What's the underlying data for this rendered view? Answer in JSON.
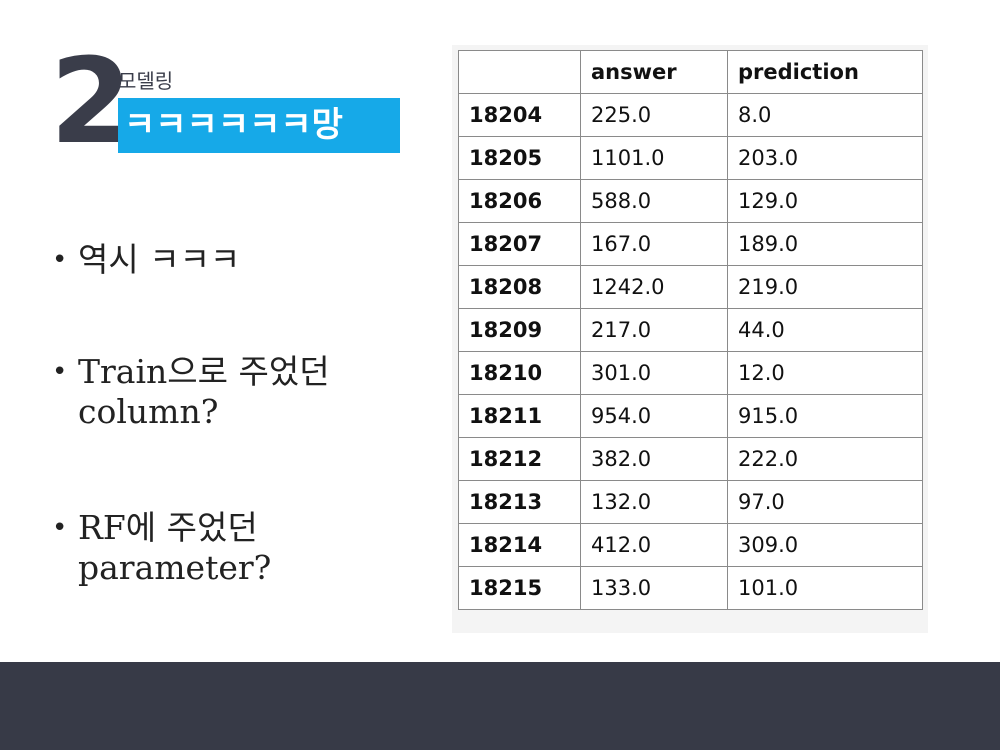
{
  "slide": {
    "number": "2",
    "subtitle": "모델링",
    "title": "ㅋㅋㅋㅋㅋㅋ망",
    "accent_color": "#16a9e8",
    "footer_color": "#373a47"
  },
  "bullets": [
    {
      "symbol": "•",
      "text": "역시 ㅋㅋㅋ"
    },
    {
      "symbol": "•",
      "text": "Train으로 주었던 column?"
    },
    {
      "symbol": "•",
      "text": "RF에 주었던 parameter?"
    }
  ],
  "table": {
    "columns": [
      "",
      "answer",
      "prediction"
    ],
    "rows": [
      {
        "index": "18204",
        "answer": "225.0",
        "prediction": "8.0"
      },
      {
        "index": "18205",
        "answer": "1101.0",
        "prediction": "203.0"
      },
      {
        "index": "18206",
        "answer": "588.0",
        "prediction": "129.0"
      },
      {
        "index": "18207",
        "answer": "167.0",
        "prediction": "189.0"
      },
      {
        "index": "18208",
        "answer": "1242.0",
        "prediction": "219.0"
      },
      {
        "index": "18209",
        "answer": "217.0",
        "prediction": "44.0"
      },
      {
        "index": "18210",
        "answer": "301.0",
        "prediction": "12.0"
      },
      {
        "index": "18211",
        "answer": "954.0",
        "prediction": "915.0"
      },
      {
        "index": "18212",
        "answer": "382.0",
        "prediction": "222.0"
      },
      {
        "index": "18213",
        "answer": "132.0",
        "prediction": "97.0"
      },
      {
        "index": "18214",
        "answer": "412.0",
        "prediction": "309.0"
      },
      {
        "index": "18215",
        "answer": "133.0",
        "prediction": "101.0"
      }
    ]
  }
}
